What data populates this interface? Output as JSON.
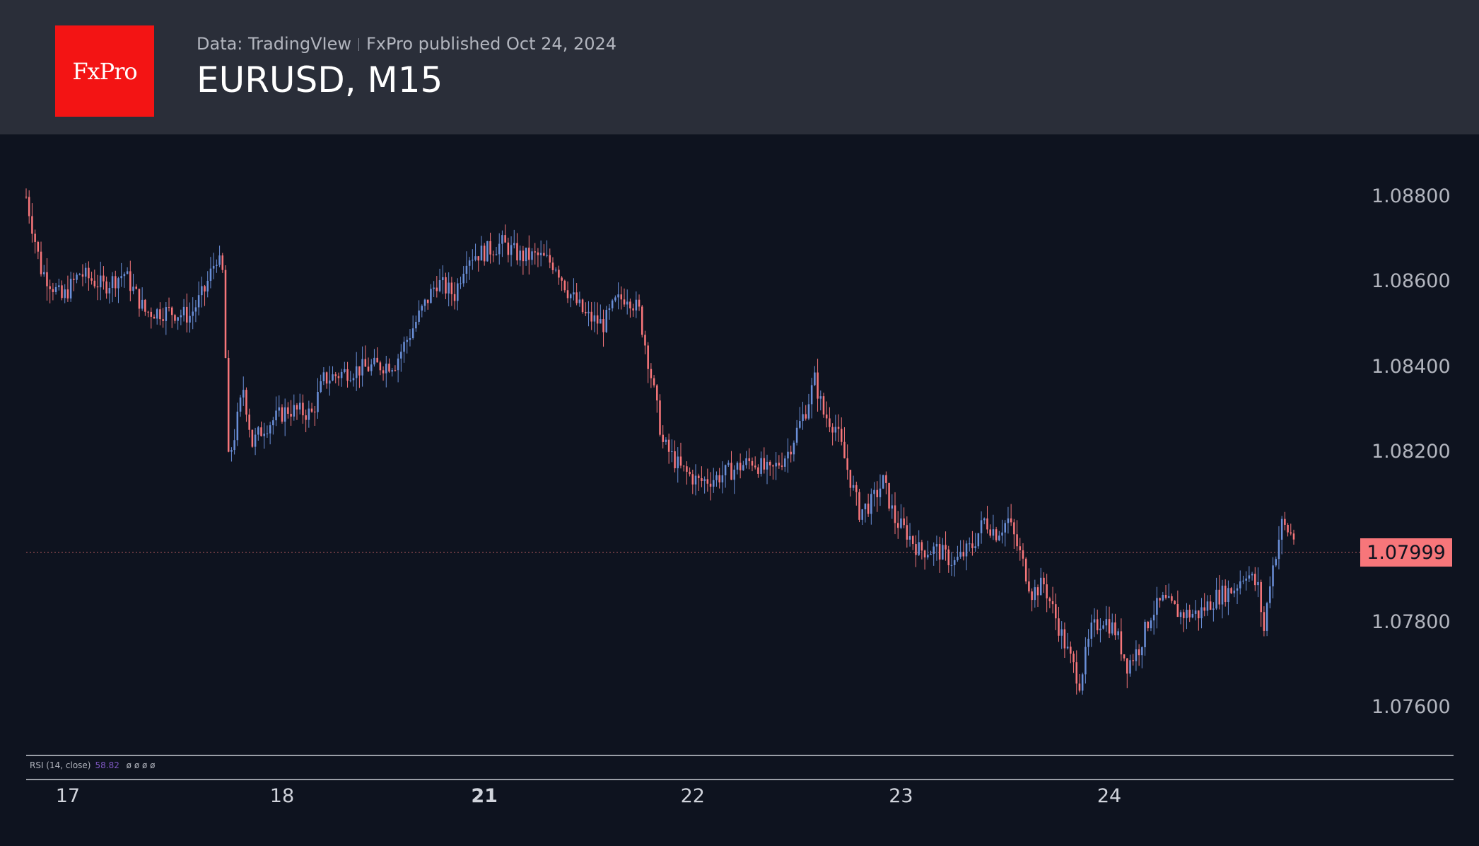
{
  "header": {
    "logo_text": "FxPro",
    "source": "Data: TradingVIew",
    "publisher": "FxPro published Oct 24, 2024",
    "title": "EURUSD, M15"
  },
  "colors": {
    "background": "#0e131f",
    "header_bg": "#2a2e39",
    "logo_bg": "#f31414",
    "up": "#6a8fd8",
    "down": "#f7767a",
    "rsi": "#7e57c2"
  },
  "indicator": {
    "label": "RSI (14, close)",
    "value": "58.82",
    "placeholders": "ø ø ø ø"
  },
  "chart_data": {
    "type": "candlestick",
    "symbol": "EURUSD",
    "timeframe": "M15",
    "ylim": [
      1.0755,
      1.0893
    ],
    "y_ticks": [
      "1.08800",
      "1.08600",
      "1.08400",
      "1.08200",
      "1.07800",
      "1.07600"
    ],
    "x_ticks": [
      "17",
      "18",
      "21",
      "22",
      "23",
      "24"
    ],
    "current_price": "1.07999",
    "grid": false,
    "approx_close_path": [
      [
        0,
        1.088
      ],
      [
        5,
        1.0863
      ],
      [
        12,
        1.0856
      ],
      [
        18,
        1.0862
      ],
      [
        26,
        1.0859
      ],
      [
        33,
        1.0862
      ],
      [
        40,
        1.0853
      ],
      [
        48,
        1.0853
      ],
      [
        55,
        1.0852
      ],
      [
        60,
        1.0858
      ],
      [
        64,
        1.0866
      ],
      [
        66,
        1.0862
      ],
      [
        67,
        1.0842
      ],
      [
        68,
        1.0818
      ],
      [
        70,
        1.0824
      ],
      [
        73,
        1.0835
      ],
      [
        76,
        1.0822
      ],
      [
        80,
        1.0826
      ],
      [
        88,
        1.083
      ],
      [
        96,
        1.0829
      ],
      [
        100,
        1.0837
      ],
      [
        108,
        1.0839
      ],
      [
        116,
        1.084
      ],
      [
        124,
        1.0841
      ],
      [
        132,
        1.0852
      ],
      [
        138,
        1.086
      ],
      [
        144,
        1.0857
      ],
      [
        148,
        1.0866
      ],
      [
        154,
        1.0867
      ],
      [
        160,
        1.0869
      ],
      [
        166,
        1.0866
      ],
      [
        172,
        1.0866
      ],
      [
        178,
        1.0864
      ],
      [
        182,
        1.0858
      ],
      [
        188,
        1.0852
      ],
      [
        194,
        1.085
      ],
      [
        198,
        1.0855
      ],
      [
        202,
        1.0857
      ],
      [
        206,
        1.0853
      ],
      [
        210,
        1.0838
      ],
      [
        214,
        1.0822
      ],
      [
        220,
        1.0816
      ],
      [
        226,
        1.0813
      ],
      [
        232,
        1.0814
      ],
      [
        238,
        1.0816
      ],
      [
        244,
        1.0818
      ],
      [
        250,
        1.0815
      ],
      [
        256,
        1.082
      ],
      [
        262,
        1.083
      ],
      [
        265,
        1.0837
      ],
      [
        268,
        1.0829
      ],
      [
        272,
        1.0826
      ],
      [
        276,
        1.0816
      ],
      [
        280,
        1.0806
      ],
      [
        284,
        1.0808
      ],
      [
        288,
        1.0813
      ],
      [
        292,
        1.0804
      ],
      [
        296,
        1.0801
      ],
      [
        300,
        1.0797
      ],
      [
        306,
        1.0797
      ],
      [
        312,
        1.0794
      ],
      [
        318,
        1.0798
      ],
      [
        322,
        1.0804
      ],
      [
        326,
        1.0801
      ],
      [
        330,
        1.0804
      ],
      [
        334,
        1.0796
      ],
      [
        338,
        1.0787
      ],
      [
        342,
        1.0789
      ],
      [
        346,
        1.0781
      ],
      [
        350,
        1.0773
      ],
      [
        354,
        1.0766
      ],
      [
        358,
        1.0778
      ],
      [
        362,
        1.0781
      ],
      [
        366,
        1.0778
      ],
      [
        370,
        1.077
      ],
      [
        374,
        1.0774
      ],
      [
        378,
        1.0782
      ],
      [
        382,
        1.0785
      ],
      [
        388,
        1.0782
      ],
      [
        394,
        1.0782
      ],
      [
        400,
        1.0786
      ],
      [
        406,
        1.0788
      ],
      [
        410,
        1.0792
      ],
      [
        414,
        1.0788
      ],
      [
        416,
        1.0778
      ],
      [
        418,
        1.079
      ],
      [
        422,
        1.0803
      ],
      [
        426,
        1.08
      ]
    ],
    "x_tick_bars": [
      14,
      86,
      154,
      224,
      294,
      364
    ]
  }
}
